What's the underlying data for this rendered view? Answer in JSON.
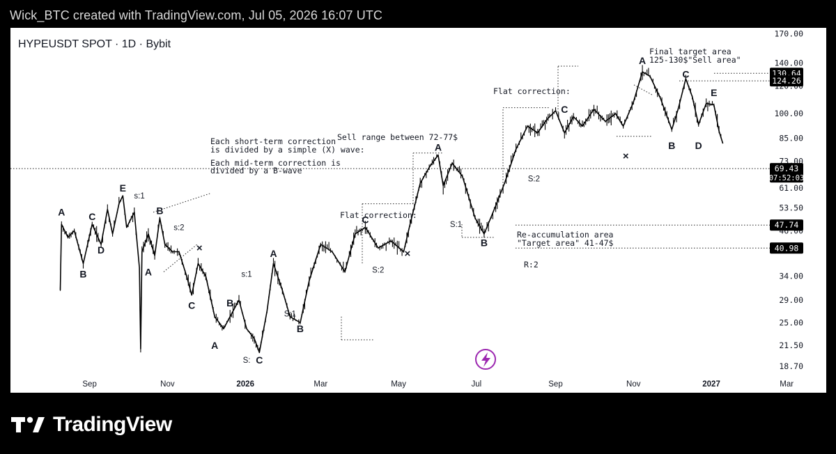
{
  "credit": "Wick_BTC created with TradingView.com, Jul 05, 2026 16:07 UTC",
  "branding": {
    "name": "TradingView",
    "logo_icon": "tradingview-logo-icon"
  },
  "colors": {
    "background": "#000000",
    "panel": "#ffffff",
    "candle": "#000000",
    "label_box": "#000000",
    "label_text": "#ffffff",
    "accent_purple": "#9c27b0"
  },
  "chart_data": {
    "type": "line",
    "title": "HYPEUSDT SPOT · 1D · Bybit",
    "scale": "log",
    "y_ticks": [
      170.0,
      140.0,
      120.0,
      100.0,
      85.0,
      73.0,
      61.0,
      53.5,
      46.0,
      34.0,
      29.0,
      25.0,
      21.5,
      18.7
    ],
    "x_ticks": [
      "Sep",
      "Nov",
      "2026",
      "Mar",
      "May",
      "Jul",
      "Sep",
      "Nov",
      "2027",
      "Mar"
    ],
    "ylim": [
      18.2,
      175
    ],
    "series": [
      {
        "values": [
          [
            "2025-08-09",
            31
          ],
          [
            "2025-08-10",
            48
          ],
          [
            "2025-08-15",
            44
          ],
          [
            "2025-08-20",
            46
          ],
          [
            "2025-08-27",
            37
          ],
          [
            "2025-09-03",
            48
          ],
          [
            "2025-09-10",
            42
          ],
          [
            "2025-09-15",
            53
          ],
          [
            "2025-09-19",
            45
          ],
          [
            "2025-09-24",
            55
          ],
          [
            "2025-09-27",
            58
          ],
          [
            "2025-09-30",
            47
          ],
          [
            "2025-10-06",
            52
          ],
          [
            "2025-10-10",
            36
          ],
          [
            "2025-10-11",
            21
          ],
          [
            "2025-10-12",
            40
          ],
          [
            "2025-10-17",
            45
          ],
          [
            "2025-10-22",
            39
          ],
          [
            "2025-10-26",
            50
          ],
          [
            "2025-10-30",
            42
          ],
          [
            "2025-11-05",
            40
          ],
          [
            "2025-11-10",
            40
          ],
          [
            "2025-11-16",
            34
          ],
          [
            "2025-11-20",
            30
          ],
          [
            "2025-11-25",
            37
          ],
          [
            "2025-12-01",
            34
          ],
          [
            "2025-12-08",
            26
          ],
          [
            "2025-12-15",
            24
          ],
          [
            "2025-12-20",
            26
          ],
          [
            "2025-12-27",
            29
          ],
          [
            "2026-01-02",
            24
          ],
          [
            "2026-01-08",
            22.5
          ],
          [
            "2026-01-12",
            20.5
          ],
          [
            "2026-01-18",
            27
          ],
          [
            "2026-01-23",
            37
          ],
          [
            "2026-01-30",
            31
          ],
          [
            "2026-02-05",
            26
          ],
          [
            "2026-02-13",
            25
          ],
          [
            "2026-02-20",
            33
          ],
          [
            "2026-03-01",
            42
          ],
          [
            "2026-03-10",
            40
          ],
          [
            "2026-03-20",
            35
          ],
          [
            "2026-03-28",
            45
          ],
          [
            "2026-04-05",
            47
          ],
          [
            "2026-04-15",
            41
          ],
          [
            "2026-04-25",
            43
          ],
          [
            "2026-05-05",
            40
          ],
          [
            "2026-05-10",
            48
          ],
          [
            "2026-05-18",
            63
          ],
          [
            "2026-05-25",
            70
          ],
          [
            "2026-06-01",
            76
          ],
          [
            "2026-06-05",
            62
          ],
          [
            "2026-06-12",
            72
          ],
          [
            "2026-06-20",
            66
          ],
          [
            "2026-06-30",
            50
          ],
          [
            "2026-07-07",
            45
          ],
          [
            "2026-07-15",
            53
          ],
          [
            "2026-07-23",
            63
          ],
          [
            "2026-08-01",
            79
          ],
          [
            "2026-08-10",
            92
          ],
          [
            "2026-08-18",
            88
          ],
          [
            "2026-08-25",
            96
          ],
          [
            "2026-09-01",
            102
          ],
          [
            "2026-09-08",
            88
          ],
          [
            "2026-09-15",
            98
          ],
          [
            "2026-09-22",
            92
          ],
          [
            "2026-10-01",
            103
          ],
          [
            "2026-10-10",
            95
          ],
          [
            "2026-10-18",
            100
          ],
          [
            "2026-10-24",
            92
          ],
          [
            "2026-11-01",
            108
          ],
          [
            "2026-11-08",
            132
          ],
          [
            "2026-11-14",
            128
          ],
          [
            "2026-11-22",
            111
          ],
          [
            "2026-12-01",
            90
          ],
          [
            "2026-12-06",
            103
          ],
          [
            "2026-12-12",
            126
          ],
          [
            "2026-12-17",
            112
          ],
          [
            "2026-12-22",
            93
          ],
          [
            "2026-12-28",
            107
          ],
          [
            "2027-01-03",
            106
          ],
          [
            "2027-01-07",
            89
          ],
          [
            "2027-01-10",
            82
          ]
        ]
      }
    ],
    "price_labels": [
      {
        "value": 130.64,
        "text": "130.64"
      },
      {
        "value": 124.26,
        "text": "124.26"
      },
      {
        "value": 69.43,
        "text": "69.43",
        "sub": "07:52:03"
      },
      {
        "value": 47.74,
        "text": "47.74"
      },
      {
        "value": 40.98,
        "text": "40.98"
      }
    ],
    "annotations": {
      "short_term": "Each short-term correction",
      "short_term_2": "is divided by a simple (X) wave:",
      "mid_term": "Each mid-term correction is",
      "mid_term_2": "divided by a B-wave",
      "sell_range": "Sell range between 72-77$",
      "flat_1": "Flat correction:",
      "flat_2": "Flat correction:",
      "final_target": "Final target area",
      "final_target_2": "125-130$\"Sell area\"",
      "reacc": "Re-accumulation area",
      "reacc_2": "\"Target area\" 41-47$",
      "r2": "R:2"
    },
    "wave_labels": [
      {
        "t": "A",
        "d": "2025-08-10",
        "v": 52
      },
      {
        "t": "B",
        "d": "2025-08-27",
        "v": 34.5
      },
      {
        "t": "C",
        "d": "2025-09-03",
        "v": 50.5
      },
      {
        "t": "D",
        "d": "2025-09-10",
        "v": 40.5
      },
      {
        "t": "E",
        "d": "2025-09-27",
        "v": 61
      },
      {
        "t": "A",
        "d": "2025-10-17",
        "v": 35
      },
      {
        "t": "B",
        "d": "2025-10-26",
        "v": 52.5
      },
      {
        "t": "C",
        "d": "2025-11-20",
        "v": 28
      },
      {
        "t": "A",
        "d": "2025-12-08",
        "v": 21.5
      },
      {
        "t": "B",
        "d": "2025-12-20",
        "v": 28.5
      },
      {
        "t": "C",
        "d": "2026-01-12",
        "v": 19.5
      },
      {
        "t": "A",
        "d": "2026-01-23",
        "v": 39.5
      },
      {
        "t": "B",
        "d": "2026-02-13",
        "v": 24
      },
      {
        "t": "C",
        "d": "2026-04-05",
        "v": 49.5
      },
      {
        "t": "A",
        "d": "2026-06-01",
        "v": 80
      },
      {
        "t": "B",
        "d": "2026-07-07",
        "v": 42.5
      },
      {
        "t": "C",
        "d": "2026-09-08",
        "v": 103
      },
      {
        "t": "A",
        "d": "2026-11-08",
        "v": 142
      },
      {
        "t": "B",
        "d": "2026-12-01",
        "v": 81
      },
      {
        "t": "C",
        "d": "2026-12-12",
        "v": 130
      },
      {
        "t": "D",
        "d": "2026-12-22",
        "v": 81
      },
      {
        "t": "E",
        "d": "2027-01-03",
        "v": 115
      }
    ],
    "small_labels": [
      {
        "t": "s:1",
        "d": "2025-10-10",
        "v": 58
      },
      {
        "t": "s:2",
        "d": "2025-11-10",
        "v": 47
      },
      {
        "t": "s:1",
        "d": "2026-01-02",
        "v": 34.5
      },
      {
        "t": "S:1",
        "d": "2026-02-05",
        "v": 26.5
      },
      {
        "t": "S:",
        "d": "2026-01-02",
        "v": 19.5
      },
      {
        "t": "S:2",
        "d": "2026-04-15",
        "v": 35.5
      },
      {
        "t": "S:1",
        "d": "2026-06-15",
        "v": 48
      },
      {
        "t": "S:2",
        "d": "2026-08-15",
        "v": 65
      }
    ],
    "x_marks": [
      {
        "d": "2025-11-26",
        "v": 41
      },
      {
        "d": "2026-05-08",
        "v": 39.5
      },
      {
        "d": "2026-10-26",
        "v": 75.5
      }
    ]
  }
}
